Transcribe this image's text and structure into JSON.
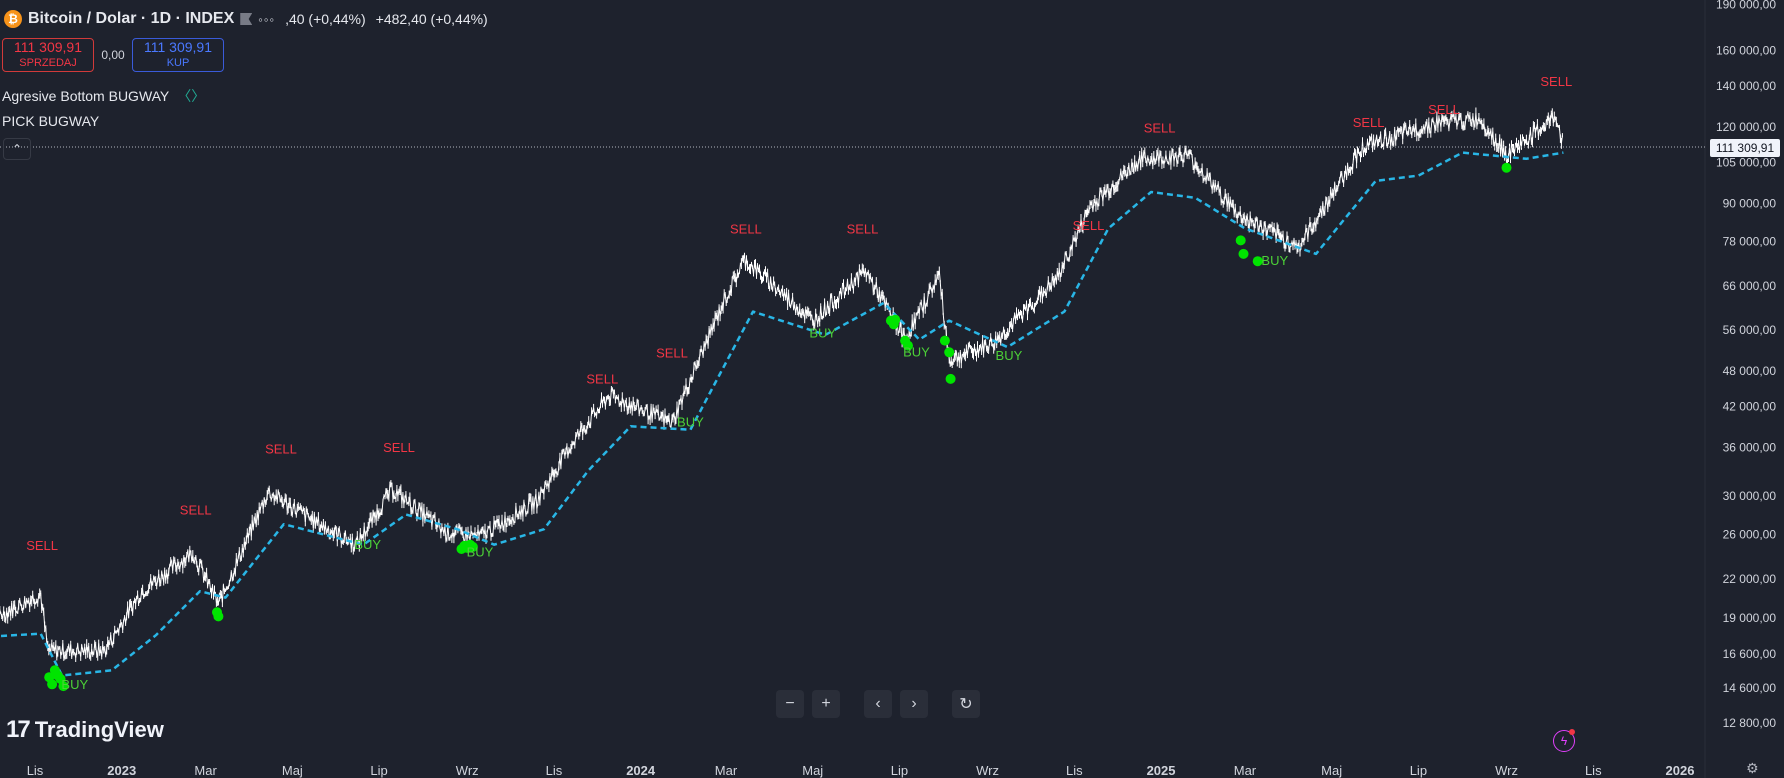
{
  "header": {
    "coin_glyph": "₿",
    "symbol": "Bitcoin / Dolar · 1D · INDEX",
    "more": "◦◦◦",
    "change_partial": ",40 (+0,44%)",
    "change": "+482,40 (+0,44%)"
  },
  "trade": {
    "sell_price": "111 309,91",
    "sell_label": "SPRZEDAJ",
    "spread": "0,00",
    "buy_price": "111 309,91",
    "buy_label": "KUP"
  },
  "indicators": {
    "first": "Agresive Bottom BUGWAY",
    "first_icon": "〈〉",
    "second": "PICK BUGWAY"
  },
  "collapse_icon": "⌃",
  "logo": {
    "mark": "17",
    "text": "TradingView"
  },
  "nav": {
    "zoom_out": "−",
    "zoom_in": "+",
    "prev": "‹",
    "next": "›",
    "reset": "↻"
  },
  "colors": {
    "background": "#1e222d",
    "candles": "#ffffff",
    "support_line": "#29b6e6",
    "sell_label": "#f23645",
    "buy_label": "#4cd137",
    "buy_dots": "#00e400"
  },
  "chart_data": {
    "type": "line",
    "title": "Bitcoin / Dolar · 1D · INDEX",
    "y_scale": "log",
    "current_price": 111309.91,
    "current_price_label": "111 309,91",
    "y_ticks": [
      {
        "value": 190000,
        "label": "190 000,00"
      },
      {
        "value": 160000,
        "label": "160 000,00"
      },
      {
        "value": 140000,
        "label": "140 000,00"
      },
      {
        "value": 120000,
        "label": "120 000,00"
      },
      {
        "value": 105000,
        "label": "105 000,00"
      },
      {
        "value": 90000,
        "label": "90 000,00"
      },
      {
        "value": 78000,
        "label": "78 000,00"
      },
      {
        "value": 66000,
        "label": "66 000,00"
      },
      {
        "value": 56000,
        "label": "56 000,00"
      },
      {
        "value": 48000,
        "label": "48 000,00"
      },
      {
        "value": 42000,
        "label": "42 000,00"
      },
      {
        "value": 36000,
        "label": "36 000,00"
      },
      {
        "value": 30000,
        "label": "30 000,00"
      },
      {
        "value": 26000,
        "label": "26 000,00"
      },
      {
        "value": 22000,
        "label": "22 000,00"
      },
      {
        "value": 19000,
        "label": "19 000,00"
      },
      {
        "value": 16600,
        "label": "16 600,00"
      },
      {
        "value": 14600,
        "label": "14 600,00"
      },
      {
        "value": 12800,
        "label": "12 800,00"
      }
    ],
    "x_ticks": [
      {
        "date": "2022-11-01",
        "label": "Lis",
        "bold": false
      },
      {
        "date": "2023-01-01",
        "label": "2023",
        "bold": true
      },
      {
        "date": "2023-03-01",
        "label": "Mar",
        "bold": false
      },
      {
        "date": "2023-05-01",
        "label": "Maj",
        "bold": false
      },
      {
        "date": "2023-07-01",
        "label": "Lip",
        "bold": false
      },
      {
        "date": "2023-09-01",
        "label": "Wrz",
        "bold": false
      },
      {
        "date": "2023-11-01",
        "label": "Lis",
        "bold": false
      },
      {
        "date": "2024-01-01",
        "label": "2024",
        "bold": true
      },
      {
        "date": "2024-03-01",
        "label": "Mar",
        "bold": false
      },
      {
        "date": "2024-05-01",
        "label": "Maj",
        "bold": false
      },
      {
        "date": "2024-07-01",
        "label": "Lip",
        "bold": false
      },
      {
        "date": "2024-09-01",
        "label": "Wrz",
        "bold": false
      },
      {
        "date": "2024-11-01",
        "label": "Lis",
        "bold": false
      },
      {
        "date": "2025-01-01",
        "label": "2025",
        "bold": true
      },
      {
        "date": "2025-03-01",
        "label": "Mar",
        "bold": false
      },
      {
        "date": "2025-05-01",
        "label": "Maj",
        "bold": false
      },
      {
        "date": "2025-07-01",
        "label": "Lip",
        "bold": false
      },
      {
        "date": "2025-09-01",
        "label": "Wrz",
        "bold": false
      },
      {
        "date": "2025-11-01",
        "label": "Lis",
        "bold": false
      },
      {
        "date": "2026-01-01",
        "label": "2026",
        "bold": true
      }
    ],
    "price_series": [
      {
        "date": "2022-09-10",
        "value": 19200
      },
      {
        "date": "2022-10-10",
        "value": 19300
      },
      {
        "date": "2022-11-05",
        "value": 20800
      },
      {
        "date": "2022-11-10",
        "value": 16800
      },
      {
        "date": "2022-12-20",
        "value": 16800
      },
      {
        "date": "2023-01-15",
        "value": 21000
      },
      {
        "date": "2023-02-20",
        "value": 24300
      },
      {
        "date": "2023-03-10",
        "value": 20000
      },
      {
        "date": "2023-04-14",
        "value": 30500
      },
      {
        "date": "2023-05-20",
        "value": 27000
      },
      {
        "date": "2023-06-15",
        "value": 25000
      },
      {
        "date": "2023-07-10",
        "value": 30800
      },
      {
        "date": "2023-08-17",
        "value": 26200
      },
      {
        "date": "2023-09-10",
        "value": 25800
      },
      {
        "date": "2023-10-20",
        "value": 29500
      },
      {
        "date": "2023-11-15",
        "value": 37000
      },
      {
        "date": "2023-12-10",
        "value": 43800
      },
      {
        "date": "2024-01-23",
        "value": 39500
      },
      {
        "date": "2024-02-28",
        "value": 62000
      },
      {
        "date": "2024-03-14",
        "value": 73000
      },
      {
        "date": "2024-05-01",
        "value": 58000
      },
      {
        "date": "2024-06-07",
        "value": 70000
      },
      {
        "date": "2024-07-05",
        "value": 54000
      },
      {
        "date": "2024-07-29",
        "value": 69000
      },
      {
        "date": "2024-08-05",
        "value": 50000
      },
      {
        "date": "2024-09-06",
        "value": 53500
      },
      {
        "date": "2024-10-20",
        "value": 68000
      },
      {
        "date": "2024-11-12",
        "value": 89000
      },
      {
        "date": "2024-12-17",
        "value": 106000
      },
      {
        "date": "2025-01-20",
        "value": 108000
      },
      {
        "date": "2025-02-25",
        "value": 86000
      },
      {
        "date": "2025-04-08",
        "value": 76500
      },
      {
        "date": "2025-05-22",
        "value": 111000
      },
      {
        "date": "2025-07-14",
        "value": 122000
      },
      {
        "date": "2025-08-14",
        "value": 123500
      },
      {
        "date": "2025-09-01",
        "value": 108000
      },
      {
        "date": "2025-10-06",
        "value": 125000
      },
      {
        "date": "2025-10-11",
        "value": 111309.91
      }
    ],
    "support_series": [
      {
        "date": "2022-09-10",
        "value": 17600
      },
      {
        "date": "2022-11-05",
        "value": 17900
      },
      {
        "date": "2022-11-20",
        "value": 15300
      },
      {
        "date": "2022-12-25",
        "value": 15600
      },
      {
        "date": "2023-01-25",
        "value": 17800
      },
      {
        "date": "2023-02-25",
        "value": 21000
      },
      {
        "date": "2023-03-15",
        "value": 20500
      },
      {
        "date": "2023-04-25",
        "value": 27000
      },
      {
        "date": "2023-06-20",
        "value": 25000
      },
      {
        "date": "2023-07-20",
        "value": 28000
      },
      {
        "date": "2023-08-25",
        "value": 26500
      },
      {
        "date": "2023-09-20",
        "value": 25000
      },
      {
        "date": "2023-10-25",
        "value": 26500
      },
      {
        "date": "2023-11-25",
        "value": 33000
      },
      {
        "date": "2023-12-25",
        "value": 39000
      },
      {
        "date": "2024-02-05",
        "value": 38500
      },
      {
        "date": "2024-03-20",
        "value": 60000
      },
      {
        "date": "2024-05-10",
        "value": 55000
      },
      {
        "date": "2024-06-20",
        "value": 62000
      },
      {
        "date": "2024-07-15",
        "value": 54000
      },
      {
        "date": "2024-08-05",
        "value": 58000
      },
      {
        "date": "2024-09-15",
        "value": 52500
      },
      {
        "date": "2024-10-25",
        "value": 60000
      },
      {
        "date": "2024-11-25",
        "value": 82000
      },
      {
        "date": "2024-12-25",
        "value": 94000
      },
      {
        "date": "2025-01-25",
        "value": 92000
      },
      {
        "date": "2025-03-01",
        "value": 82000
      },
      {
        "date": "2025-04-20",
        "value": 74500
      },
      {
        "date": "2025-06-01",
        "value": 98000
      },
      {
        "date": "2025-07-01",
        "value": 100000
      },
      {
        "date": "2025-08-01",
        "value": 109000
      },
      {
        "date": "2025-09-15",
        "value": 106500
      },
      {
        "date": "2025-10-11",
        "value": 109000
      }
    ],
    "annotations": [
      {
        "label": "SELL",
        "date": "2022-11-06",
        "value": 24500
      },
      {
        "label": "SELL",
        "date": "2023-02-22",
        "value": 28000
      },
      {
        "label": "SELL",
        "date": "2023-04-23",
        "value": 35200
      },
      {
        "label": "SELL",
        "date": "2023-07-15",
        "value": 35400
      },
      {
        "label": "SELL",
        "date": "2023-12-05",
        "value": 45800
      },
      {
        "label": "SELL",
        "date": "2024-01-23",
        "value": 50500
      },
      {
        "label": "SELL",
        "date": "2024-03-15",
        "value": 80500
      },
      {
        "label": "SELL",
        "date": "2024-06-05",
        "value": 80500
      },
      {
        "label": "SELL",
        "date": "2024-11-11",
        "value": 81500
      },
      {
        "label": "SELL",
        "date": "2024-12-31",
        "value": 117500
      },
      {
        "label": "SELL",
        "date": "2025-05-27",
        "value": 120000
      },
      {
        "label": "SELL",
        "date": "2025-07-19",
        "value": 126000
      },
      {
        "label": "SELL",
        "date": "2025-10-06",
        "value": 140000
      },
      {
        "label": "BUY",
        "date": "2022-11-29",
        "value": 14550
      },
      {
        "label": "BUY",
        "date": "2023-06-23",
        "value": 24600
      },
      {
        "label": "BUY",
        "date": "2023-09-10",
        "value": 23900
      },
      {
        "label": "BUY",
        "date": "2024-02-05",
        "value": 39000
      },
      {
        "label": "BUY",
        "date": "2024-05-08",
        "value": 54400
      },
      {
        "label": "BUY",
        "date": "2024-07-13",
        "value": 50700
      },
      {
        "label": "BUY",
        "date": "2024-09-16",
        "value": 50000
      },
      {
        "label": "BUY",
        "date": "2025-03-22",
        "value": 71500
      }
    ],
    "buy_dots": [
      {
        "date": "2022-11-11",
        "value": 15200
      },
      {
        "date": "2022-11-13",
        "value": 14800
      },
      {
        "date": "2022-11-15",
        "value": 15600
      },
      {
        "date": "2022-11-17",
        "value": 15300
      },
      {
        "date": "2022-11-19",
        "value": 15100
      },
      {
        "date": "2022-11-21",
        "value": 14700
      },
      {
        "date": "2023-03-09",
        "value": 19400
      },
      {
        "date": "2023-03-10",
        "value": 19100
      },
      {
        "date": "2023-08-28",
        "value": 24600
      },
      {
        "date": "2023-08-30",
        "value": 24900
      },
      {
        "date": "2023-09-01",
        "value": 24700
      },
      {
        "date": "2023-09-03",
        "value": 25000
      },
      {
        "date": "2023-09-05",
        "value": 24800
      },
      {
        "date": "2024-06-25",
        "value": 58000
      },
      {
        "date": "2024-06-27",
        "value": 57200
      },
      {
        "date": "2024-06-28",
        "value": 58200
      },
      {
        "date": "2024-07-05",
        "value": 53800
      },
      {
        "date": "2024-07-07",
        "value": 52800
      },
      {
        "date": "2024-08-02",
        "value": 53800
      },
      {
        "date": "2024-08-05",
        "value": 51500
      },
      {
        "date": "2024-08-06",
        "value": 46600
      },
      {
        "date": "2025-02-26",
        "value": 78400
      },
      {
        "date": "2025-02-28",
        "value": 74500
      },
      {
        "date": "2025-03-10",
        "value": 72500
      },
      {
        "date": "2025-09-01",
        "value": 103000
      }
    ]
  }
}
